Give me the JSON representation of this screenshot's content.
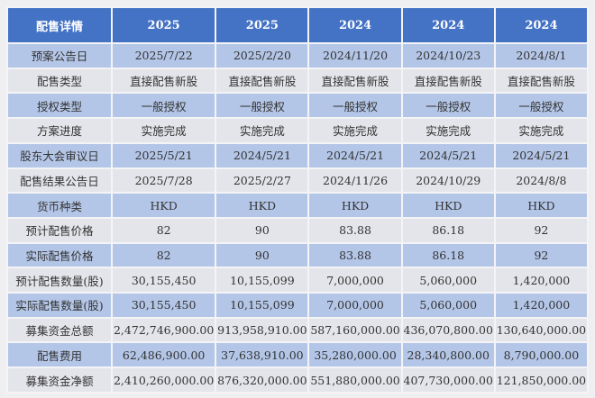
{
  "table": {
    "headers": [
      "配售详情",
      "2025",
      "2025",
      "2024",
      "2024",
      "2024"
    ],
    "rows": [
      [
        "预案公告日",
        "2025/7/22",
        "2025/2/20",
        "2024/11/20",
        "2024/10/23",
        "2024/8/1"
      ],
      [
        "配售类型",
        "直接配售新股",
        "直接配售新股",
        "直接配售新股",
        "直接配售新股",
        "直接配售新股"
      ],
      [
        "授权类型",
        "一般授权",
        "一般授权",
        "一般授权",
        "一般授权",
        "一般授权"
      ],
      [
        "方案进度",
        "实施完成",
        "实施完成",
        "实施完成",
        "实施完成",
        "实施完成"
      ],
      [
        "股东大会审议日",
        "2025/5/21",
        "2024/5/21",
        "2024/5/21",
        "2024/5/21",
        "2024/5/21"
      ],
      [
        "配售结果公告日",
        "2025/7/28",
        "2025/2/27",
        "2024/11/26",
        "2024/10/29",
        "2024/8/8"
      ],
      [
        "货币种类",
        "HKD",
        "HKD",
        "HKD",
        "HKD",
        "HKD"
      ],
      [
        "预计配售价格",
        "82",
        "90",
        "83.88",
        "86.18",
        "92"
      ],
      [
        "实际配售价格",
        "82",
        "90",
        "83.88",
        "86.18",
        "92"
      ],
      [
        "预计配售数量(股)",
        "30,155,450",
        "10,155,099",
        "7,000,000",
        "5,060,000",
        "1,420,000"
      ],
      [
        "实际配售数量(股)",
        "30,155,450",
        "10,155,099",
        "7,000,000",
        "5,060,000",
        "1,420,000"
      ],
      [
        "募集资金总额",
        "2,472,746,900.00",
        "913,958,910.00",
        "587,160,000.00",
        "436,070,800.00",
        "130,640,000.00"
      ],
      [
        "配售费用",
        "62,486,900.00",
        "37,638,910.00",
        "35,280,000.00",
        "28,340,800.00",
        "8,790,000.00"
      ],
      [
        "募集资金净额",
        "2,410,260,000.00",
        "876,320,000.00",
        "551,880,000.00",
        "407,730,000.00",
        "121,850,000.00"
      ]
    ]
  },
  "colors": {
    "header": "#4472c4",
    "row_blue": "#b4c6e7",
    "row_gray": "#e4e5ea"
  }
}
